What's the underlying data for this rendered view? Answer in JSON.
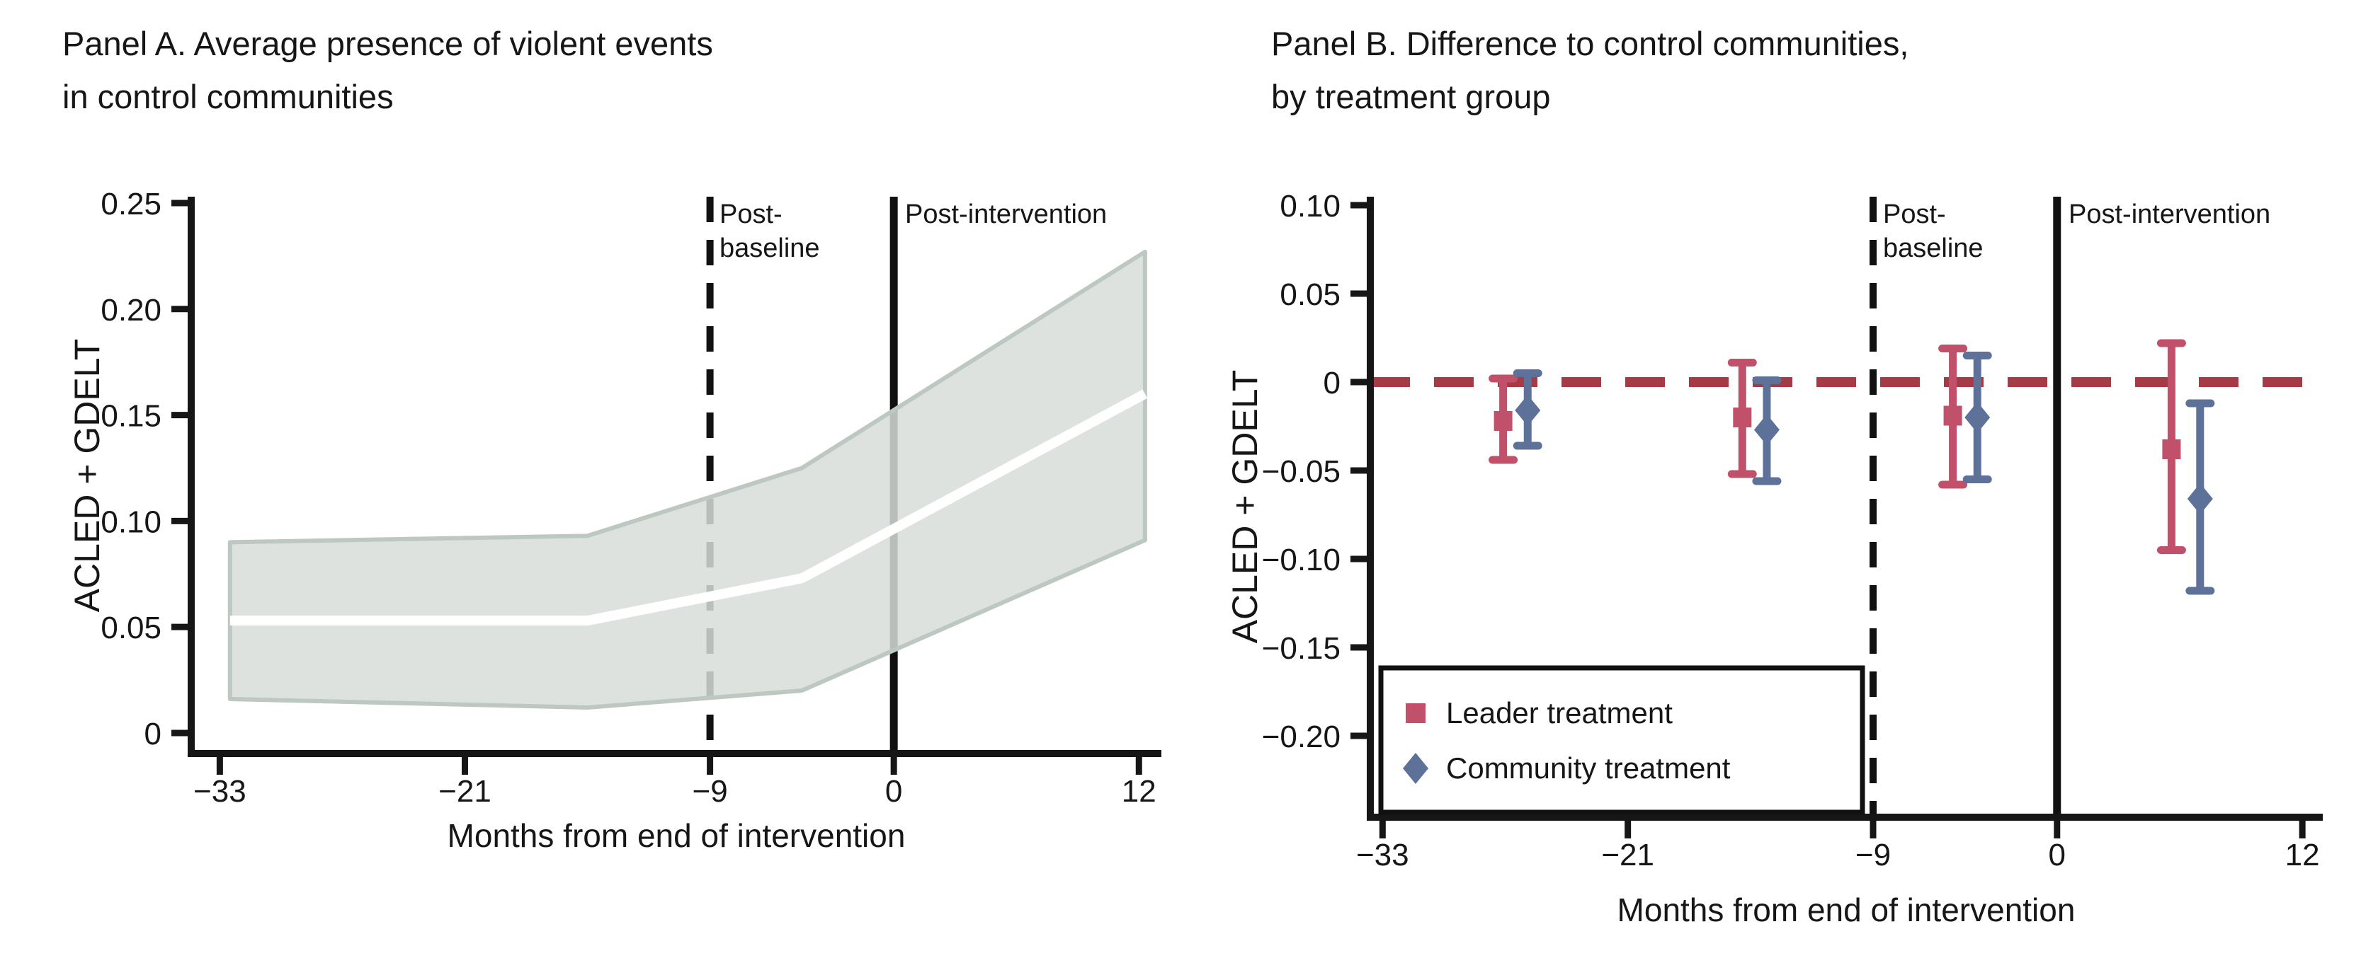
{
  "figure": {
    "panels": [
      {
        "id": "A",
        "title_line1": "Panel A. Average presence of violent events",
        "title_line2": "in control communities",
        "ylabel": "ACLED + GDELT",
        "xlabel": "Months from end of intervention",
        "annotations": {
          "dashed_label_line1": "Post-",
          "dashed_label_line2": "baseline",
          "solid_label": "Post-intervention"
        }
      },
      {
        "id": "B",
        "title_line1": "Panel B. Difference to control communities,",
        "title_line2": "by treatment group",
        "ylabel": "ACLED + GDELT",
        "xlabel": "Months from end of intervention",
        "annotations": {
          "dashed_label_line1": "Post-",
          "dashed_label_line2": "baseline",
          "solid_label": "Post-intervention"
        }
      }
    ]
  },
  "colors": {
    "axis": "#161616",
    "background": "#ffffff",
    "band_fill": "#d7ddd8",
    "band_edge": "#bdc8c0",
    "mean_line": "#ffffff",
    "leader_red": "#c1506b",
    "community_blue": "#5d7199",
    "refline_red": "#a63b45",
    "vline_black": "#111111"
  },
  "chart_data": [
    {
      "type": "area",
      "panel": "A",
      "title": "Panel A. Average presence of violent events in control communities",
      "xlabel": "Months from end of intervention",
      "ylabel": "ACLED + GDELT",
      "xlim": [
        -34.4,
        13.1
      ],
      "ylim": [
        -0.0097,
        0.253
      ],
      "grid": false,
      "x_months": [
        -32.5,
        -15,
        -4.5,
        12.3
      ],
      "mean": [
        0.053,
        0.053,
        0.073,
        0.16
      ],
      "ci_upper": [
        0.09,
        0.093,
        0.125,
        0.227
      ],
      "ci_lower": [
        0.016,
        0.012,
        0.02,
        0.091
      ],
      "xticks": [
        {
          "v": -33,
          "label": "−33"
        },
        {
          "v": -21,
          "label": "−21"
        },
        {
          "v": -9,
          "label": "−9"
        },
        {
          "v": 0,
          "label": "0"
        },
        {
          "v": 12,
          "label": "12"
        }
      ],
      "yticks": [
        {
          "v": 0,
          "label": "0"
        },
        {
          "v": 0.05,
          "label": "0.05"
        },
        {
          "v": 0.1,
          "label": "0.10"
        },
        {
          "v": 0.15,
          "label": "0.15"
        },
        {
          "v": 0.2,
          "label": "0.20"
        },
        {
          "v": 0.25,
          "label": "0.25"
        }
      ],
      "vlines": [
        {
          "x": -9,
          "style": "dashed",
          "label": "Post-baseline"
        },
        {
          "x": 0,
          "style": "solid",
          "label": "Post-intervention"
        }
      ]
    },
    {
      "type": "errorbar",
      "panel": "B",
      "title": "Panel B. Difference to control communities, by treatment group",
      "xlabel": "Months from end of intervention",
      "ylabel": "ACLED + GDELT",
      "xlim": [
        -33.6,
        13.0
      ],
      "ylim": [
        -0.246,
        0.1048
      ],
      "grid": false,
      "refline": {
        "y": 0,
        "style": "dashed"
      },
      "vlines": [
        {
          "x": -9,
          "style": "dashed",
          "label": "Post-baseline"
        },
        {
          "x": 0,
          "style": "solid",
          "label": "Post-intervention"
        }
      ],
      "xticks": [
        {
          "v": -33,
          "label": "−33"
        },
        {
          "v": -21,
          "label": "−21"
        },
        {
          "v": -9,
          "label": "−9"
        },
        {
          "v": 0,
          "label": "0"
        },
        {
          "v": 12,
          "label": "12"
        }
      ],
      "yticks": [
        {
          "v": 0.1,
          "label": "0.10"
        },
        {
          "v": 0.05,
          "label": "0.05"
        },
        {
          "v": 0,
          "label": "0"
        },
        {
          "v": -0.05,
          "label": "−0.05"
        },
        {
          "v": -0.1,
          "label": "−0.10"
        },
        {
          "v": -0.15,
          "label": "−0.15"
        },
        {
          "v": -0.2,
          "label": "−0.20"
        }
      ],
      "series": [
        {
          "name": "Leader treatment",
          "marker": "square",
          "points": [
            {
              "x": -27.1,
              "est": -0.022,
              "lo": -0.044,
              "hi": 0.002
            },
            {
              "x": -15.4,
              "est": -0.02,
              "lo": -0.052,
              "hi": 0.011
            },
            {
              "x": -5.1,
              "est": -0.019,
              "lo": -0.058,
              "hi": 0.019
            },
            {
              "x": 5.6,
              "est": -0.038,
              "lo": -0.095,
              "hi": 0.022
            }
          ]
        },
        {
          "name": "Community treatment",
          "marker": "diamond",
          "points": [
            {
              "x": -25.9,
              "est": -0.016,
              "lo": -0.036,
              "hi": 0.005
            },
            {
              "x": -14.2,
              "est": -0.027,
              "lo": -0.056,
              "hi": 0.001
            },
            {
              "x": -3.9,
              "est": -0.02,
              "lo": -0.055,
              "hi": 0.015
            },
            {
              "x": 7.0,
              "est": -0.066,
              "lo": -0.118,
              "hi": -0.012
            }
          ]
        }
      ],
      "legend": {
        "position": "bottom-left",
        "entries": [
          "Leader treatment",
          "Community treatment"
        ]
      }
    }
  ]
}
